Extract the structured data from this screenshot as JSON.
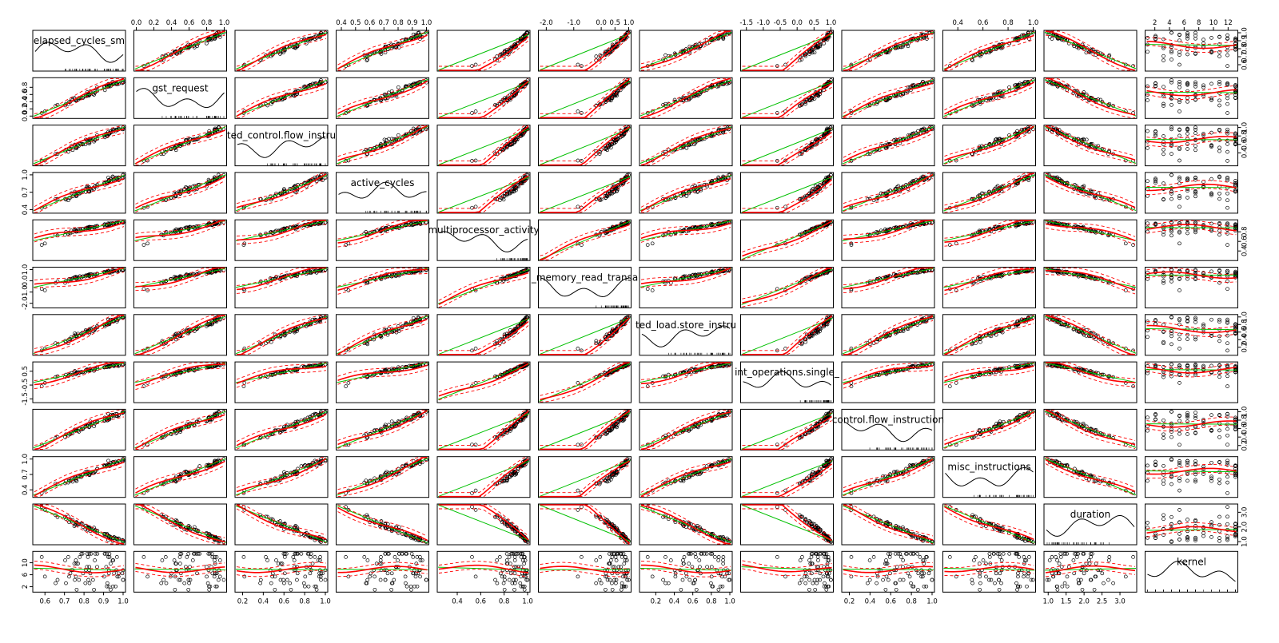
{
  "chart_data": {
    "type": "scatter",
    "subtype": "scatterplot-matrix",
    "title": "",
    "diagonal": "density with rug",
    "overlays": [
      "linear fit (green)",
      "loess smooth (red)",
      "smooth spread (red dashed)"
    ],
    "colors": {
      "points": "#000000",
      "linear": "#00c000",
      "smooth": "#ff0000"
    },
    "variables": [
      {
        "name": "elapsed_cycles_sm",
        "range": [
          0.55,
          1.0
        ],
        "ticks": [
          "0.6",
          "0.7",
          "0.8",
          "0.9",
          "1.0"
        ]
      },
      {
        "name": "gst_request",
        "range": [
          0.0,
          1.0
        ],
        "ticks": [
          "0.0",
          "0.2",
          "0.4",
          "0.6",
          "0.8",
          "1.0"
        ]
      },
      {
        "name": "ted_control.flow_instru",
        "range": [
          0.15,
          1.0
        ],
        "ticks": [
          "0.2",
          "0.4",
          "0.6",
          "0.8",
          "1.0"
        ]
      },
      {
        "name": "active_cycles",
        "range": [
          0.38,
          1.0
        ],
        "ticks": [
          "0.4",
          "0.5",
          "0.6",
          "0.7",
          "0.8",
          "0.9",
          "1.0"
        ]
      },
      {
        "name": "multiprocessor_activity",
        "range": [
          0.25,
          1.0
        ],
        "ticks": [
          "0.4",
          "0.6",
          "0.8",
          "1.0"
        ]
      },
      {
        "name": "_memory_read_transa",
        "range": [
          -2.2,
          1.0
        ],
        "ticks": [
          "-2.0",
          "-1.0",
          "0.0",
          "0.5",
          "1.0"
        ]
      },
      {
        "name": "ted_load.store_instru",
        "range": [
          0.05,
          1.0
        ],
        "ticks": [
          "0.2",
          "0.4",
          "0.6",
          "0.8",
          "1.0"
        ]
      },
      {
        "name": "int_operations.single_",
        "range": [
          -1.6,
          1.0
        ],
        "ticks": [
          "-1.5",
          "-1.0",
          "-0.5",
          "0.0",
          "0.5",
          "1.0"
        ]
      },
      {
        "name": "control.flow_instruction",
        "range": [
          0.15,
          1.0
        ],
        "ticks": [
          "0.2",
          "0.4",
          "0.6",
          "0.8",
          "1.0"
        ]
      },
      {
        "name": "misc_instructions",
        "range": [
          0.3,
          1.0
        ],
        "ticks": [
          "0.4",
          "0.6",
          "0.8",
          "1.0"
        ]
      },
      {
        "name": "duration",
        "range": [
          0.95,
          3.4
        ],
        "ticks": [
          "1.0",
          "1.5",
          "2.0",
          "2.5",
          "3.0"
        ]
      },
      {
        "name": "kernel",
        "range": [
          1,
          13
        ],
        "ticks": [
          "2",
          "4",
          "6",
          "8",
          "10",
          "12"
        ]
      }
    ],
    "axis_label_sides": {
      "top": [
        1,
        3,
        5,
        7,
        9,
        11
      ],
      "bottom": [
        0,
        2,
        4,
        6,
        8,
        10
      ],
      "left": [
        1,
        3,
        5,
        7,
        9,
        11
      ],
      "right": [
        0,
        2,
        4,
        6,
        8,
        10
      ]
    },
    "yticks_shown": {
      "0": [
        "0.6",
        "0.7",
        "0.8",
        "0.9",
        "1.0"
      ],
      "1": [
        "0.0",
        "0.2",
        "0.4",
        "0.6",
        "0.8"
      ],
      "2": [
        "0.4",
        "0.6",
        "0.8",
        "1.0"
      ],
      "3": [
        "0.4",
        "0.7",
        "1.0"
      ],
      "4": [
        "0.4",
        "0.6",
        "0.8"
      ],
      "5": [
        "-2.0",
        "-1.0",
        "0.0",
        "1.0"
      ],
      "6": [
        "0.2",
        "0.4",
        "0.6",
        "0.8",
        "1.0"
      ],
      "7": [
        "-1.5",
        "-0.5",
        "0.5"
      ],
      "8": [
        "0.2",
        "0.4",
        "0.6",
        "0.8",
        "1.0"
      ],
      "9": [
        "0.4",
        "0.7",
        "1.0"
      ],
      "10": [
        "1.0",
        "2.0",
        "3.0"
      ],
      "11": [
        "2",
        "6",
        "10"
      ]
    },
    "xticks_shown": {
      "0": [
        "0.6",
        "0.7",
        "0.8",
        "0.9",
        "1.0"
      ],
      "1": [
        "0.0",
        "0.2",
        "0.4",
        "0.6",
        "0.8",
        "1.0"
      ],
      "2": [
        "0.2",
        "0.4",
        "0.6",
        "0.8",
        "1.0"
      ],
      "3": [
        "0.4",
        "0.5",
        "0.6",
        "0.7",
        "0.8",
        "0.9",
        "1.0"
      ],
      "4": [
        "0.4",
        "0.6",
        "0.8",
        "1.0"
      ],
      "5": [
        "-2.0",
        "-1.0",
        "0.0",
        "0.5",
        "1.0"
      ],
      "6": [
        "0.2",
        "0.4",
        "0.6",
        "0.8",
        "1.0"
      ],
      "7": [
        "-1.5",
        "-1.0",
        "-0.5",
        "0.0",
        "0.5",
        "1.0"
      ],
      "8": [
        "0.2",
        "0.4",
        "0.6",
        "0.8",
        "1.0"
      ],
      "9": [
        "0.4",
        "0.6",
        "0.8",
        "1.0"
      ],
      "10": [
        "1.0",
        "1.5",
        "2.0",
        "2.5",
        "3.0"
      ],
      "11": [
        "2",
        "4",
        "6",
        "8",
        "10",
        "12"
      ]
    },
    "correlation_sign": [
      1,
      1,
      1,
      1,
      1,
      1,
      1,
      1,
      1,
      1,
      -1,
      0
    ]
  }
}
